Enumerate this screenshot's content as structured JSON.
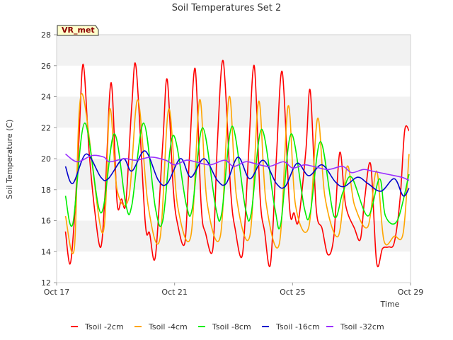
{
  "chart_data": {
    "type": "line",
    "title": "Soil Temperatures Set 2",
    "xlabel": "Time",
    "ylabel": "Soil Temperature (C)",
    "badge": "VR_met",
    "xlim": [
      0,
      12
    ],
    "ylim": [
      12,
      28
    ],
    "yticks": [
      12,
      14,
      16,
      18,
      20,
      22,
      24,
      26,
      28
    ],
    "xticks": [
      {
        "value": 0,
        "label": "Oct 17"
      },
      {
        "value": 4,
        "label": "Oct 21"
      },
      {
        "value": 8,
        "label": "Oct 25"
      },
      {
        "value": 12,
        "label": "Oct 29"
      }
    ],
    "grid": "horizontal bands",
    "legend_position": "bottom",
    "series": [
      {
        "name": "Tsoil -2cm",
        "color": "#ff0000",
        "x": [
          0.3,
          0.45,
          0.58,
          0.75,
          0.9,
          1.1,
          1.3,
          1.5,
          1.65,
          1.85,
          2.05,
          2.2,
          2.35,
          2.55,
          2.7,
          3.0,
          3.15,
          3.35,
          3.6,
          3.75,
          3.95,
          4.1,
          4.35,
          4.5,
          4.7,
          4.9,
          5.05,
          5.3,
          5.45,
          5.65,
          5.9,
          6.05,
          6.3,
          6.5,
          6.7,
          6.9,
          7.05,
          7.25,
          7.45,
          7.65,
          7.9,
          8.05,
          8.2,
          8.45,
          8.6,
          8.8,
          9.0,
          9.2,
          9.4,
          9.6,
          9.8,
          10.1,
          10.3,
          10.45,
          10.65,
          10.85,
          11.05,
          11.25,
          11.45,
          11.65,
          11.8,
          11.95
        ],
        "y": [
          15.3,
          13.2,
          15.5,
          21.0,
          26.1,
          20.5,
          16.5,
          14.3,
          18.0,
          24.9,
          17.2,
          17.4,
          17.2,
          23.5,
          25.8,
          16.0,
          15.2,
          13.7,
          21.0,
          25.1,
          18.2,
          15.8,
          14.6,
          20.0,
          25.8,
          17.0,
          15.2,
          14.2,
          21.0,
          26.3,
          18.0,
          15.5,
          13.8,
          20.0,
          26.0,
          17.5,
          15.3,
          13.2,
          20.0,
          25.6,
          16.8,
          16.5,
          16.0,
          20.5,
          24.4,
          16.8,
          15.5,
          13.8,
          15.0,
          20.4,
          17.0,
          15.5,
          14.8,
          17.5,
          19.6,
          13.3,
          14.2,
          14.3,
          14.6,
          17.5,
          21.8,
          21.8
        ]
      },
      {
        "name": "Tsoil -4cm",
        "color": "#ffa500",
        "x": [
          0.3,
          0.6,
          0.85,
          1.55,
          1.8,
          2.05,
          2.45,
          2.75,
          3.1,
          3.5,
          3.8,
          4.1,
          4.55,
          4.85,
          5.1,
          5.55,
          5.85,
          6.1,
          6.55,
          6.85,
          7.1,
          7.55,
          7.85,
          8.1,
          8.55,
          8.85,
          9.1,
          9.55,
          9.85,
          10.1,
          10.55,
          10.85,
          11.1,
          11.45,
          11.75,
          11.95
        ],
        "y": [
          16.3,
          14.2,
          24.2,
          15.2,
          23.2,
          18.0,
          17.5,
          23.8,
          17.0,
          14.8,
          23.2,
          17.0,
          15.0,
          23.8,
          17.2,
          15.0,
          24.0,
          17.5,
          15.0,
          23.7,
          17.2,
          14.5,
          23.4,
          17.0,
          15.6,
          22.6,
          17.5,
          15.0,
          19.5,
          17.0,
          15.6,
          19.2,
          14.7,
          15.0,
          15.2,
          20.3
        ]
      },
      {
        "name": "Tsoil -8cm",
        "color": "#00ee00",
        "x": [
          0.3,
          0.55,
          0.95,
          1.5,
          1.95,
          2.35,
          2.55,
          2.95,
          3.35,
          3.6,
          3.95,
          4.4,
          4.6,
          4.95,
          5.4,
          5.6,
          5.95,
          6.4,
          6.6,
          6.95,
          7.4,
          7.6,
          7.95,
          8.4,
          8.6,
          8.95,
          9.4,
          9.7,
          10.0,
          10.55,
          10.95,
          11.15,
          11.55,
          11.95
        ],
        "y": [
          17.6,
          15.8,
          22.3,
          16.5,
          21.6,
          17.0,
          17.0,
          22.3,
          16.8,
          16.0,
          21.5,
          17.0,
          16.8,
          22.0,
          16.8,
          16.5,
          22.1,
          16.8,
          16.5,
          21.9,
          16.8,
          15.8,
          21.6,
          16.8,
          16.5,
          21.1,
          16.3,
          17.8,
          18.8,
          16.3,
          18.7,
          16.3,
          16.0,
          19.0
        ]
      },
      {
        "name": "Tsoil -16cm",
        "color": "#0000cc",
        "x": [
          0.3,
          0.55,
          1.0,
          1.5,
          1.75,
          2.25,
          2.55,
          3.0,
          3.45,
          3.75,
          4.2,
          4.55,
          5.0,
          5.45,
          5.75,
          6.15,
          6.55,
          7.0,
          7.45,
          7.75,
          8.15,
          8.55,
          9.0,
          9.45,
          9.75,
          10.2,
          10.55,
          11.0,
          11.45,
          11.75,
          11.95
        ],
        "y": [
          19.5,
          18.4,
          20.3,
          18.8,
          18.7,
          20.0,
          19.2,
          20.5,
          18.6,
          18.4,
          20.0,
          18.8,
          20.0,
          18.6,
          18.4,
          20.1,
          18.7,
          19.9,
          18.4,
          18.2,
          19.7,
          18.9,
          19.6,
          18.5,
          18.2,
          18.8,
          18.4,
          17.9,
          18.7,
          17.6,
          18.1
        ]
      },
      {
        "name": "Tsoil -32cm",
        "color": "#9b30ff",
        "x": [
          0.3,
          0.7,
          1.2,
          1.6,
          1.8,
          2.3,
          2.7,
          3.2,
          3.7,
          4.0,
          4.4,
          4.7,
          5.2,
          5.7,
          6.0,
          6.4,
          6.7,
          7.2,
          7.7,
          8.0,
          8.4,
          8.7,
          9.2,
          9.7,
          10.0,
          10.4,
          10.7,
          11.2,
          11.7,
          11.95
        ],
        "y": [
          20.3,
          19.8,
          20.2,
          20.1,
          19.8,
          20.0,
          19.9,
          20.1,
          19.9,
          19.6,
          19.9,
          19.8,
          19.6,
          19.9,
          19.5,
          19.8,
          19.7,
          19.5,
          19.8,
          19.4,
          19.6,
          19.5,
          19.3,
          19.5,
          19.1,
          19.3,
          19.2,
          19.0,
          18.8,
          18.6
        ]
      }
    ]
  }
}
